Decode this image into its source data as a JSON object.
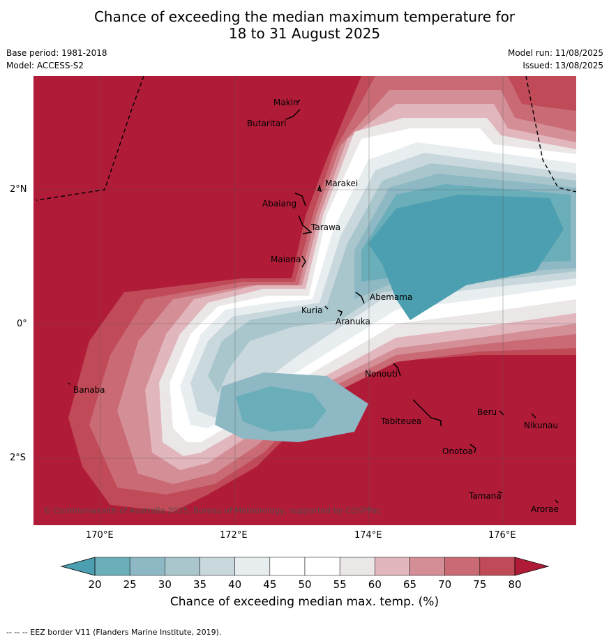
{
  "header": {
    "title_line1": "Chance of exceeding the median maximum temperature for",
    "title_line2": "18 to 31 August 2025",
    "base_period": "Base period: 1981-2018",
    "model": "Model: ACCESS-S2",
    "model_run": "Model run: 11/08/2025",
    "issued": "Issued: 13/08/2025"
  },
  "map": {
    "lon_labels": [
      "170°E",
      "172°E",
      "174°E",
      "176°E"
    ],
    "lat_labels": [
      "2°N",
      "0°",
      "2°S"
    ],
    "places": [
      {
        "name": "Makin"
      },
      {
        "name": "Butaritari"
      },
      {
        "name": "Marakei"
      },
      {
        "name": "Abaiang"
      },
      {
        "name": "Tarawa"
      },
      {
        "name": "Maiana"
      },
      {
        "name": "Abemama"
      },
      {
        "name": "Kuria"
      },
      {
        "name": "Aranuka"
      },
      {
        "name": "Banaba"
      },
      {
        "name": "Nonouti"
      },
      {
        "name": "Tabiteuea"
      },
      {
        "name": "Beru"
      },
      {
        "name": "Nikunau"
      },
      {
        "name": "Onotoa"
      },
      {
        "name": "Tamana"
      },
      {
        "name": "Arorae"
      }
    ],
    "copyright": "© Commonwealth of Australia 2025, Bureau of Meteorology, supported by COSPPac"
  },
  "colorbar": {
    "ticks": [
      "20",
      "25",
      "30",
      "35",
      "40",
      "45",
      "50",
      "55",
      "60",
      "65",
      "70",
      "75",
      "80"
    ],
    "colors": [
      "#6aaeb9",
      "#8db8c4",
      "#a8c6cc",
      "#c9d8dd",
      "#e8edf0",
      "#ffffff",
      "#ffffff",
      "#ebe7e7",
      "#e1b6bd",
      "#d48e96",
      "#c96a74",
      "#c04a58"
    ],
    "under_color": "#4b9fb0",
    "over_color": "#b01c38",
    "label": "Chance of exceeding median max. temp. (%)"
  },
  "footer": "--  --  -- EEZ border V11 (Flanders Marine Institute, 2019)."
}
